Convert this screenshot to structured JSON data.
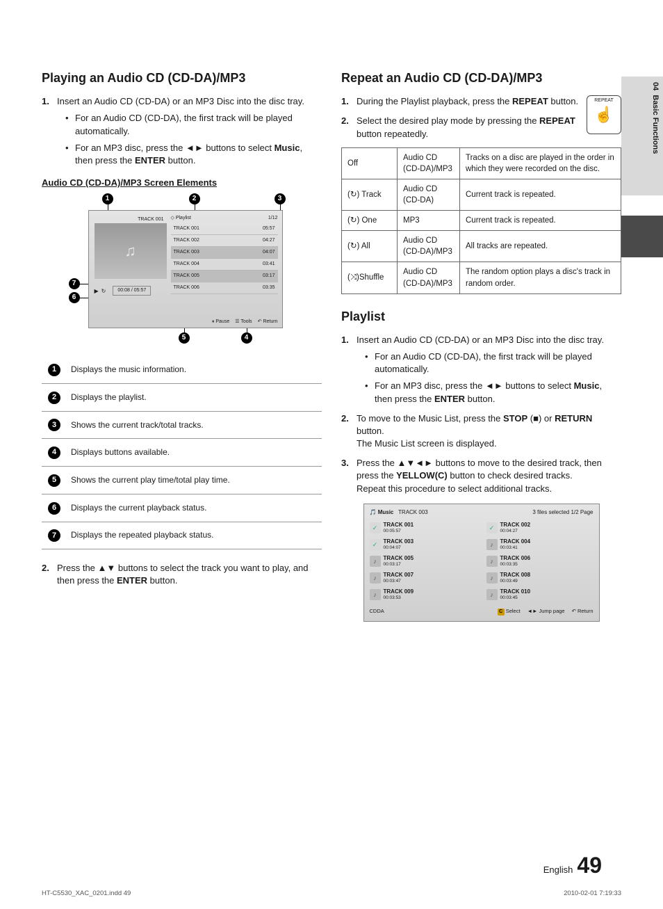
{
  "sideTab": {
    "chapter": "04",
    "title": "Basic Functions"
  },
  "left": {
    "heading": "Playing an Audio CD (CD-DA)/MP3",
    "step1_num": "1.",
    "step1": "Insert an Audio CD (CD-DA) or an MP3 Disc into the disc tray.",
    "step1_b1_a": "For an Audio CD (CD-DA), the first track will be played automatically.",
    "step1_b2_a": "For an MP3 disc, press the ",
    "step1_b2_arrows": "◄►",
    "step1_b2_b": " buttons to select ",
    "step1_b2_music": "Music",
    "step1_b2_c": ", then press the ",
    "step1_b2_enter": "ENTER",
    "step1_b2_d": " button.",
    "subheading": "Audio CD (CD-DA)/MP3 Screen Elements",
    "screen1": {
      "playlistLabel": "Playlist",
      "trackCount": "1/12",
      "artLabel": "TRACK 001",
      "tracks": [
        {
          "t": "TRACK 001",
          "d": "05:57"
        },
        {
          "t": "TRACK 002",
          "d": "04:27"
        },
        {
          "t": "TRACK 003",
          "d": "04:07"
        },
        {
          "t": "TRACK 004",
          "d": "03:41"
        },
        {
          "t": "TRACK 005",
          "d": "03:17"
        },
        {
          "t": "TRACK 006",
          "d": "03:35"
        }
      ],
      "statusTime": "00:08 / 05:57",
      "btnPause": "Pause",
      "btnTools": "Tools",
      "btnReturn": "Return"
    },
    "legend": [
      "Displays the music information.",
      "Displays the playlist.",
      "Shows the current track/total tracks.",
      "Displays buttons available.",
      "Shows the current play time/total play time.",
      "Displays the current playback status.",
      "Displays the repeated playback status."
    ],
    "step2_num": "2.",
    "step2_a": "Press the ",
    "step2_arrows": "▲▼",
    "step2_b": " buttons to select the track you want to play, and then press the ",
    "step2_enter": "ENTER",
    "step2_c": " button."
  },
  "right": {
    "heading": "Repeat an Audio CD (CD-DA)/MP3",
    "remoteLabel": "REPEAT",
    "r1_num": "1.",
    "r1_a": "During the Playlist playback, press the ",
    "r1_b": "REPEAT",
    "r1_c": " button.",
    "r2_num": "2.",
    "r2_a": "Select the desired play mode by pressing the ",
    "r2_b": "REPEAT",
    "r2_c": " button repeatedly.",
    "repTable": [
      {
        "mode": "Off",
        "icon": "",
        "disc": "Audio CD (CD-DA)/MP3",
        "desc": "Tracks on a disc are played in the order in which they were recorded on the disc."
      },
      {
        "mode": " Track",
        "icon": "(↻)",
        "disc": "Audio CD (CD-DA)",
        "desc": "Current track is repeated."
      },
      {
        "mode": " One",
        "icon": "(↻)",
        "disc": "MP3",
        "desc": "Current track is repeated."
      },
      {
        "mode": " All",
        "icon": "(↻)",
        "disc": "Audio CD (CD-DA)/MP3",
        "desc": "All tracks are repeated."
      },
      {
        "mode": "Shuffle",
        "icon": "(⤨)",
        "disc": "Audio CD (CD-DA)/MP3",
        "desc": "The random option plays a disc's track in random order."
      }
    ],
    "playlistHeading": "Playlist",
    "p1_num": "1.",
    "p1": "Insert an Audio CD (CD-DA) or an MP3 Disc into the disc tray.",
    "p1_b1": "For an Audio CD (CD-DA), the first track will be played automatically.",
    "p1_b2_a": "For an MP3 disc, press the ",
    "p1_b2_arrows": "◄►",
    "p1_b2_b": " buttons to select ",
    "p1_b2_music": "Music",
    "p1_b2_c": ", then press the ",
    "p1_b2_enter": "ENTER",
    "p1_b2_d": " button.",
    "p2_num": "2.",
    "p2_a": "To move to the Music List, press the ",
    "p2_stop": "STOP",
    "p2_b": " (■) or ",
    "p2_return": "RETURN",
    "p2_c": " button.",
    "p2_d": "The Music List screen is displayed.",
    "p3_num": "3.",
    "p3_a": "Press the ",
    "p3_arrows": "▲▼◄►",
    "p3_b": " buttons to move to the desired track, then press the ",
    "p3_yellow": "YELLOW(C)",
    "p3_c": " button to check desired tracks.",
    "p3_d": "Repeat this procedure to select additional tracks.",
    "screen2": {
      "title": "Music",
      "current": "TRACK 003",
      "selInfo": "3 files selected   1/2 Page",
      "items": [
        {
          "t": "TRACK 001",
          "d": "00:05:57",
          "sel": true
        },
        {
          "t": "TRACK 002",
          "d": "00:04:27",
          "sel": true
        },
        {
          "t": "TRACK 003",
          "d": "00:04:07",
          "sel": true
        },
        {
          "t": "TRACK 004",
          "d": "00:03:41",
          "sel": false
        },
        {
          "t": "TRACK 005",
          "d": "00:03:17",
          "sel": false
        },
        {
          "t": "TRACK 006",
          "d": "00:03:35",
          "sel": false
        },
        {
          "t": "TRACK 007",
          "d": "00:03:47",
          "sel": false
        },
        {
          "t": "TRACK 008",
          "d": "00:03:49",
          "sel": false
        },
        {
          "t": "TRACK 009",
          "d": "00:03:53",
          "sel": false
        },
        {
          "t": "TRACK 010",
          "d": "00:03:45",
          "sel": false
        }
      ],
      "cdda": "CDDA",
      "select": "Select",
      "jump": "Jump page",
      "ret": "Return"
    }
  },
  "footer": {
    "lang": "English",
    "page": "49"
  },
  "meta": {
    "left": "HT-C5530_XAC_0201.indd   49",
    "right": "2010-02-01    7:19:33"
  }
}
